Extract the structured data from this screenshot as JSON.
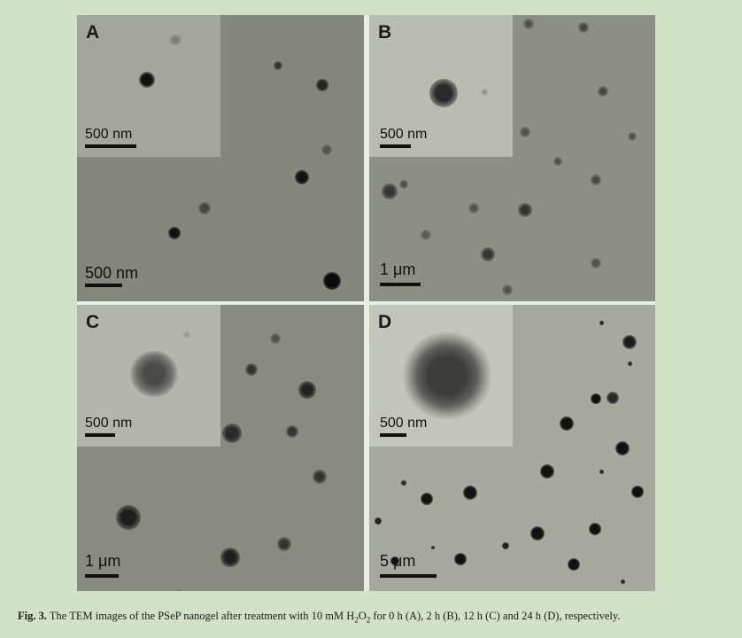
{
  "figure": {
    "panels": [
      {
        "id": "pA",
        "letter": "A",
        "inset_scale": "500 nm",
        "main_scale": "500 nm"
      },
      {
        "id": "pB",
        "letter": "B",
        "inset_scale": "500 nm",
        "main_scale": "1 μm"
      },
      {
        "id": "pC",
        "letter": "C",
        "inset_scale": "500 nm",
        "main_scale": "1 μm"
      },
      {
        "id": "pD",
        "letter": "D",
        "inset_scale": "500 nm",
        "main_scale": "5 μm"
      }
    ]
  },
  "caption": {
    "label": "Fig. 3.",
    "text_before_formula": "The TEM images of the PSeP nanogel after treatment with 10 mM H",
    "sub1": "2",
    "mid": "O",
    "sub2": "2",
    "text_after_formula": " for 0 h (A), 2 h (B), 12 h (C) and 24 h (D), respectively."
  }
}
